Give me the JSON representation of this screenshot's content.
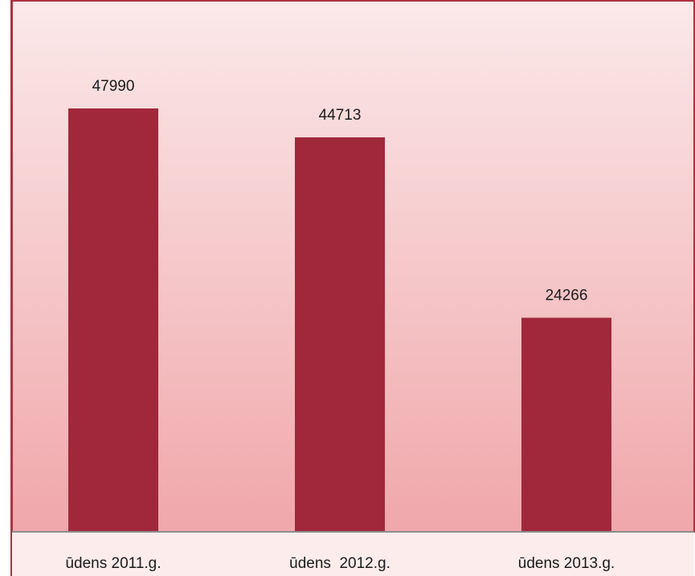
{
  "chart_data": {
    "type": "bar",
    "categories": [
      "ūdens 2011.g.",
      "ūdens  2012.g.",
      "ūdens 2013.g."
    ],
    "values": [
      47990,
      44713,
      24266
    ],
    "color": "#a0283a"
  }
}
